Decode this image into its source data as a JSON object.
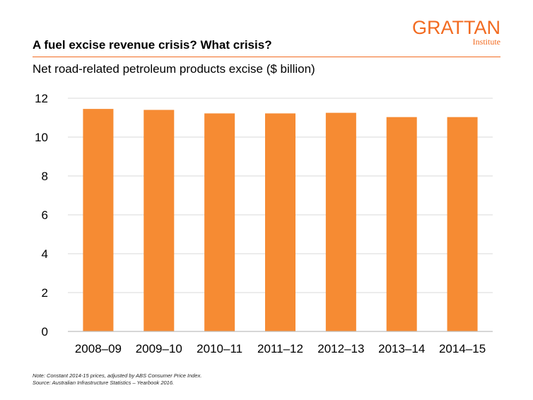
{
  "header": {
    "title": "A fuel excise revenue crisis? What crisis?",
    "subtitle": "Net road-related petroleum products excise ($ billion)"
  },
  "logo": {
    "word": "GRATTAN",
    "sub": "Institute"
  },
  "footer": {
    "note": "Note: Constant 2014-15 prices, adjusted by ABS Consumer Price Index.",
    "source": "Source: Australian Infrastructure Statistics – Yearbook 2016."
  },
  "colors": {
    "accent": "#f26b21",
    "bar": "#f68b33",
    "grid": "#d9d9d9",
    "axis": "#bfbfbf"
  },
  "chart_data": {
    "type": "bar",
    "title": "A fuel excise revenue crisis? What crisis?",
    "ylabel": "Net road-related petroleum products excise ($ billion)",
    "xlabel": "",
    "categories": [
      "2008–09",
      "2009–10",
      "2010–11",
      "2011–12",
      "2012–13",
      "2013–14",
      "2014–15"
    ],
    "values": [
      11.45,
      11.4,
      11.22,
      11.22,
      11.25,
      11.03,
      11.03
    ],
    "ylim": [
      0,
      12
    ],
    "yticks": [
      0,
      2,
      4,
      6,
      8,
      10,
      12
    ],
    "grid": true,
    "legend": "none"
  }
}
